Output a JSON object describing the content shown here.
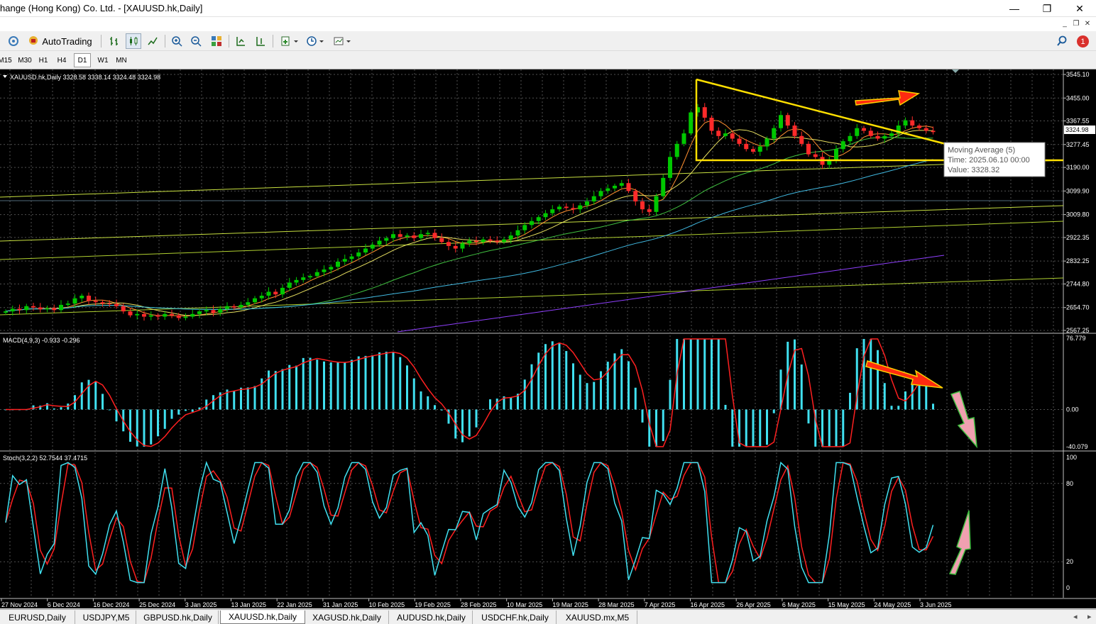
{
  "window": {
    "title": "hange (Hong Kong) Co. Ltd. - [XAUUSD.hk,Daily]"
  },
  "toolbar": {
    "autotrading_label": "AutoTrading"
  },
  "timeframes": [
    "M15",
    "M30",
    "H1",
    "H4",
    "D1",
    "W1",
    "MN"
  ],
  "active_timeframe": "D1",
  "notification_count": "1",
  "tabs": [
    "EURUSD,Daily",
    "USDJPY,M5",
    "GBPUSD.hk,Daily",
    "XAUUSD.hk,Daily",
    "XAGUSD.hk,Daily",
    "AUDUSD.hk,Daily",
    "USDCHF.hk,Daily",
    "XAUUSD.mx,M5"
  ],
  "active_tab": "XAUUSD.hk,Daily",
  "colors": {
    "bull": "#00c800",
    "bear": "#ff2a2a",
    "macd_hist": "#40e0f0",
    "macd_signal": "#ff2020",
    "stoch_main": "#40e0f0",
    "stoch_signal": "#ff2020",
    "trendline": "#ffe000",
    "ma_purple": "#9040ff",
    "ma_blue": "#40b8e0",
    "grid": "#505050"
  },
  "price_panel": {
    "header": "XAUUSD.hk,Daily  3328.58 3338.14 3324.48 3324.98",
    "current_price": "3324.98",
    "price_labels": [
      "3545.10",
      "3455.00",
      "3367.55",
      "3277.45",
      "3190.00",
      "3099.90",
      "3009.80",
      "2922.35",
      "2832.25",
      "2744.80",
      "2654.70",
      "2567.25"
    ],
    "tooltip": {
      "line1": "Moving Average (5)",
      "line2": "Time: 2025.06.10 00:00",
      "line3": "Value: 3328.32"
    }
  },
  "macd_panel": {
    "header": "MACD(4,9,3) -0.933 -0.296",
    "labels": [
      "76.779",
      "0.00",
      "-40.079"
    ]
  },
  "stoch_panel": {
    "header": "Stoch(3,2,2) 52.7544 37.4715",
    "labels": [
      "100",
      "80",
      "20",
      "0"
    ]
  },
  "date_axis": [
    "27 Nov 2024",
    "6 Dec 2024",
    "16 Dec 2024",
    "25 Dec 2024",
    "3 Jan 2025",
    "13 Jan 2025",
    "22 Jan 2025",
    "31 Jan 2025",
    "10 Feb 2025",
    "19 Feb 2025",
    "28 Feb 2025",
    "10 Mar 2025",
    "19 Mar 2025",
    "28 Mar 2025",
    "7 Apr 2025",
    "16 Apr 2025",
    "26 Apr 2025",
    "6 May 2025",
    "15 May 2025",
    "24 May 2025",
    "3 Jun 2025"
  ],
  "chart_data": [
    {
      "type": "candlestick",
      "title": "XAUUSD.hk,Daily",
      "ylim": [
        2567.25,
        3545.1
      ],
      "close_series_approx": [
        2640,
        2650,
        2645,
        2660,
        2655,
        2648,
        2652,
        2645,
        2665,
        2670,
        2690,
        2700,
        2680,
        2675,
        2670,
        2668,
        2660,
        2640,
        2625,
        2630,
        2620,
        2625,
        2620,
        2630,
        2625,
        2615,
        2620,
        2630,
        2640,
        2645,
        2635,
        2650,
        2660,
        2655,
        2665,
        2675,
        2690,
        2700,
        2715,
        2705,
        2730,
        2750,
        2760,
        2770,
        2775,
        2790,
        2800,
        2810,
        2830,
        2840,
        2850,
        2865,
        2880,
        2895,
        2910,
        2920,
        2935,
        2925,
        2930,
        2920,
        2935,
        2940,
        2920,
        2905,
        2890,
        2880,
        2900,
        2910,
        2905,
        2915,
        2910,
        2905,
        2915,
        2930,
        2950,
        2970,
        2985,
        3000,
        3015,
        3030,
        3040,
        3035,
        3030,
        3045,
        3060,
        3080,
        3100,
        3110,
        3120,
        3130,
        3100,
        3060,
        3030,
        3020,
        3080,
        3150,
        3230,
        3280,
        3320,
        3400,
        3420,
        3380,
        3330,
        3310,
        3320,
        3300,
        3280,
        3260,
        3250,
        3270,
        3300,
        3340,
        3390,
        3350,
        3310,
        3280,
        3240,
        3230,
        3200,
        3220,
        3260,
        3290,
        3310,
        3340,
        3330,
        3310,
        3300,
        3310,
        3320,
        3350,
        3370,
        3350,
        3340,
        3330,
        3325
      ]
    },
    {
      "type": "bar",
      "title": "MACD(4,9,3)",
      "ylim": [
        -40.079,
        76.779
      ]
    },
    {
      "type": "line",
      "title": "Stoch(3,2,2)",
      "ylim": [
        0,
        100
      ]
    }
  ]
}
